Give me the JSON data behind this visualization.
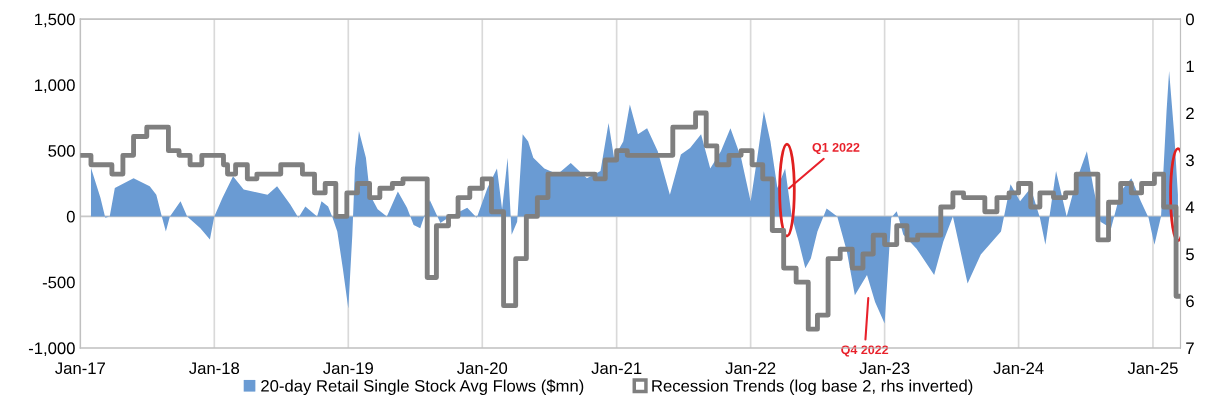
{
  "chart_data": {
    "type": "area",
    "xlim": [
      "2017-01-01",
      "2025-03-17"
    ],
    "xticks": [
      {
        "value": "2017-01-01",
        "label": "Jan-17"
      },
      {
        "value": "2018-01-01",
        "label": "Jan-18"
      },
      {
        "value": "2019-01-01",
        "label": "Jan-19"
      },
      {
        "value": "2020-01-01",
        "label": "Jan-20"
      },
      {
        "value": "2021-01-01",
        "label": "Jan-21"
      },
      {
        "value": "2022-01-01",
        "label": "Jan-22"
      },
      {
        "value": "2023-01-01",
        "label": "Jan-23"
      },
      {
        "value": "2024-01-01",
        "label": "Jan-24"
      },
      {
        "value": "2025-01-01",
        "label": "Jan-25"
      }
    ],
    "ylim": [
      -1000,
      1500
    ],
    "yticks": [
      {
        "value": -1000,
        "label": "-1,000"
      },
      {
        "value": -500,
        "label": "-500"
      },
      0,
      500,
      {
        "value": 1000,
        "label": "1,000"
      },
      {
        "value": 1500,
        "label": "1,500"
      }
    ],
    "y2lim": [
      7,
      0
    ],
    "y2ticks": [
      0,
      1,
      2,
      3,
      4,
      5,
      6,
      7
    ],
    "grid": "x",
    "legend": "bottom",
    "ref_lines": [
      {
        "axis": "y",
        "value": 0,
        "color": "#c8c8c8"
      }
    ],
    "annotations": [
      {
        "text": "Q1 2022",
        "x": "2022-04-10",
        "y": 200
      },
      {
        "text": "Q4 2022",
        "x": "2022-11-18",
        "y": -600
      }
    ],
    "series": [
      {
        "name": "20-day Retail Single Stock Avg Flows ($mn)",
        "color": "#6a9bd3",
        "x": [
          "2017-01-30",
          "2017-02-25",
          "2017-03-10",
          "2017-03-22",
          "2017-04-05",
          "2017-05-26",
          "2017-07-09",
          "2017-07-27",
          "2017-08-11",
          "2017-08-22",
          "2017-09-02",
          "2017-10-01",
          "2017-10-19",
          "2017-11-24",
          "2017-12-20",
          "2018-01-01",
          "2018-01-23",
          "2018-02-21",
          "2018-03-22",
          "2018-05-26",
          "2018-06-21",
          "2018-07-27",
          "2018-08-18",
          "2018-09-06",
          "2018-10-08",
          "2018-10-20",
          "2018-11-07",
          "2018-11-18",
          "2018-12-02",
          "2018-12-17",
          "2019-01-01",
          "2019-01-12",
          "2019-01-19",
          "2019-01-30",
          "2019-02-18",
          "2019-03-01",
          "2019-03-22",
          "2019-04-16",
          "2019-05-16",
          "2019-06-10",
          "2019-06-28",
          "2019-07-16",
          "2019-08-11",
          "2019-09-09",
          "2019-10-05",
          "2019-11-21",
          "2019-12-17",
          "2020-01-15",
          "2020-02-10",
          "2020-02-24",
          "2020-03-10",
          "2020-03-21",
          "2020-04-05",
          "2020-04-20",
          "2020-05-05",
          "2020-05-19",
          "2020-06-18",
          "2020-07-24",
          "2020-08-29",
          "2020-10-12",
          "2020-11-18",
          "2020-12-10",
          "2020-12-25",
          "2021-01-19",
          "2021-02-06",
          "2021-02-28",
          "2021-03-25",
          "2021-04-23",
          "2021-05-08",
          "2021-05-26",
          "2021-06-25",
          "2021-07-20",
          "2021-08-19",
          "2021-09-13",
          "2021-10-12",
          "2021-11-07",
          "2021-12-06",
          "2022-01-01",
          "2022-01-19",
          "2022-02-06",
          "2022-02-24",
          "2022-03-15",
          "2022-04-05",
          "2022-04-23",
          "2022-05-12",
          "2022-05-30",
          "2022-06-14",
          "2022-07-02",
          "2022-07-27",
          "2022-08-25",
          "2022-09-20",
          "2022-10-12",
          "2022-11-14",
          "2022-12-06",
          "2023-01-01",
          "2023-01-19",
          "2023-02-03",
          "2023-02-21",
          "2023-03-29",
          "2023-05-16",
          "2023-06-10",
          "2023-07-06",
          "2023-08-15",
          "2023-09-20",
          "2023-11-14",
          "2023-12-10",
          "2024-01-05",
          "2024-02-03",
          "2024-02-28",
          "2024-03-14",
          "2024-04-12",
          "2024-05-11",
          "2024-06-06",
          "2024-07-05",
          "2024-07-23",
          "2024-08-11",
          "2024-09-09",
          "2024-10-05",
          "2024-11-03",
          "2024-11-29",
          "2024-12-20",
          "2025-01-05",
          "2025-01-23",
          "2025-02-07",
          "2025-02-14",
          "2025-02-28",
          "2025-03-10"
        ],
        "values": [
          370,
          140,
          -10,
          0,
          215,
          290,
          230,
          165,
          0,
          -115,
          0,
          115,
          0,
          -90,
          -175,
          0,
          140,
          305,
          205,
          165,
          230,
          90,
          -10,
          75,
          0,
          115,
          75,
          0,
          -115,
          -395,
          -700,
          -140,
          365,
          650,
          445,
          165,
          55,
          0,
          190,
          65,
          -65,
          -90,
          125,
          -50,
          0,
          65,
          -10,
          215,
          365,
          55,
          445,
          -140,
          -40,
          625,
          570,
          445,
          365,
          320,
          405,
          290,
          345,
          710,
          445,
          570,
          850,
          625,
          670,
          495,
          345,
          165,
          470,
          520,
          625,
          365,
          495,
          670,
          445,
          115,
          445,
          800,
          570,
          215,
          365,
          0,
          -190,
          -395,
          -320,
          -115,
          60,
          0,
          -265,
          -600,
          -445,
          -650,
          -815,
          -10,
          40,
          -140,
          -245,
          -445,
          -190,
          0,
          -510,
          -290,
          -115,
          245,
          115,
          215,
          -10,
          -215,
          345,
          0,
          270,
          495,
          215,
          -40,
          -90,
          190,
          290,
          115,
          -10,
          -215,
          0,
          800,
          1105,
          625,
          165
        ]
      },
      {
        "name": "Recession Trends (log base 2, rhs inverted)",
        "type": "step",
        "axis": "y2",
        "color": "#7f7f7f",
        "x": [
          "2017-01-05",
          "2017-01-30",
          "2017-03-28",
          "2017-04-27",
          "2017-05-26",
          "2017-07-01",
          "2017-08-29",
          "2017-09-27",
          "2017-10-27",
          "2017-11-28",
          "2018-01-26",
          "2018-02-06",
          "2018-02-28",
          "2018-04-01",
          "2018-04-27",
          "2018-07-01",
          "2018-08-29",
          "2018-10-01",
          "2018-10-30",
          "2018-11-28",
          "2018-12-28",
          "2019-01-26",
          "2019-02-28",
          "2019-03-28",
          "2019-05-01",
          "2019-05-30",
          "2019-08-04",
          "2019-08-29",
          "2019-10-01",
          "2019-10-27",
          "2019-11-28",
          "2020-01-01",
          "2020-01-26",
          "2020-02-28",
          "2020-04-01",
          "2020-04-30",
          "2020-05-30",
          "2020-06-28",
          "2020-11-03",
          "2020-12-01",
          "2021-01-01",
          "2021-01-30",
          "2021-06-03",
          "2021-08-04",
          "2021-09-02",
          "2021-10-01",
          "2021-11-03",
          "2021-12-06",
          "2022-01-05",
          "2022-02-03",
          "2022-03-01",
          "2022-04-01",
          "2022-05-05",
          "2022-06-07",
          "2022-07-02",
          "2022-07-31",
          "2022-09-02",
          "2022-10-05",
          "2022-11-03",
          "2022-12-01",
          "2023-01-01",
          "2023-02-03",
          "2023-03-03",
          "2023-04-01",
          "2023-06-03",
          "2023-07-06",
          "2023-08-04",
          "2023-10-01",
          "2023-11-03",
          "2023-12-06",
          "2024-01-01",
          "2024-02-03",
          "2024-02-28",
          "2024-04-05",
          "2024-05-08",
          "2024-06-06",
          "2024-08-04",
          "2024-09-02",
          "2024-10-05",
          "2024-11-03",
          "2024-12-01",
          "2025-01-05",
          "2025-01-30",
          "2025-03-05",
          "2025-03-17"
        ],
        "values": [
          2.9,
          3.1,
          3.3,
          2.9,
          2.5,
          2.3,
          2.8,
          2.9,
          3.1,
          2.9,
          3.1,
          3.3,
          3.1,
          3.4,
          3.3,
          3.1,
          3.3,
          3.7,
          3.5,
          4.2,
          3.7,
          3.5,
          3.8,
          3.6,
          3.5,
          3.4,
          5.5,
          4.4,
          4.2,
          3.8,
          3.6,
          3.4,
          4.1,
          6.1,
          5.1,
          4.2,
          3.8,
          3.3,
          3.4,
          3.0,
          2.8,
          2.9,
          2.3,
          2.0,
          2.7,
          3.1,
          2.9,
          2.8,
          3.1,
          3.4,
          4.5,
          5.3,
          5.6,
          6.6,
          6.3,
          5.1,
          4.9,
          5.3,
          5.0,
          4.6,
          4.8,
          4.4,
          4.7,
          4.6,
          4.0,
          3.7,
          3.8,
          4.1,
          3.8,
          3.7,
          3.5,
          4.0,
          3.7,
          3.8,
          3.7,
          3.3,
          4.7,
          3.9,
          3.5,
          3.7,
          3.5,
          3.3,
          4.0,
          5.9,
          5.9
        ]
      }
    ]
  }
}
